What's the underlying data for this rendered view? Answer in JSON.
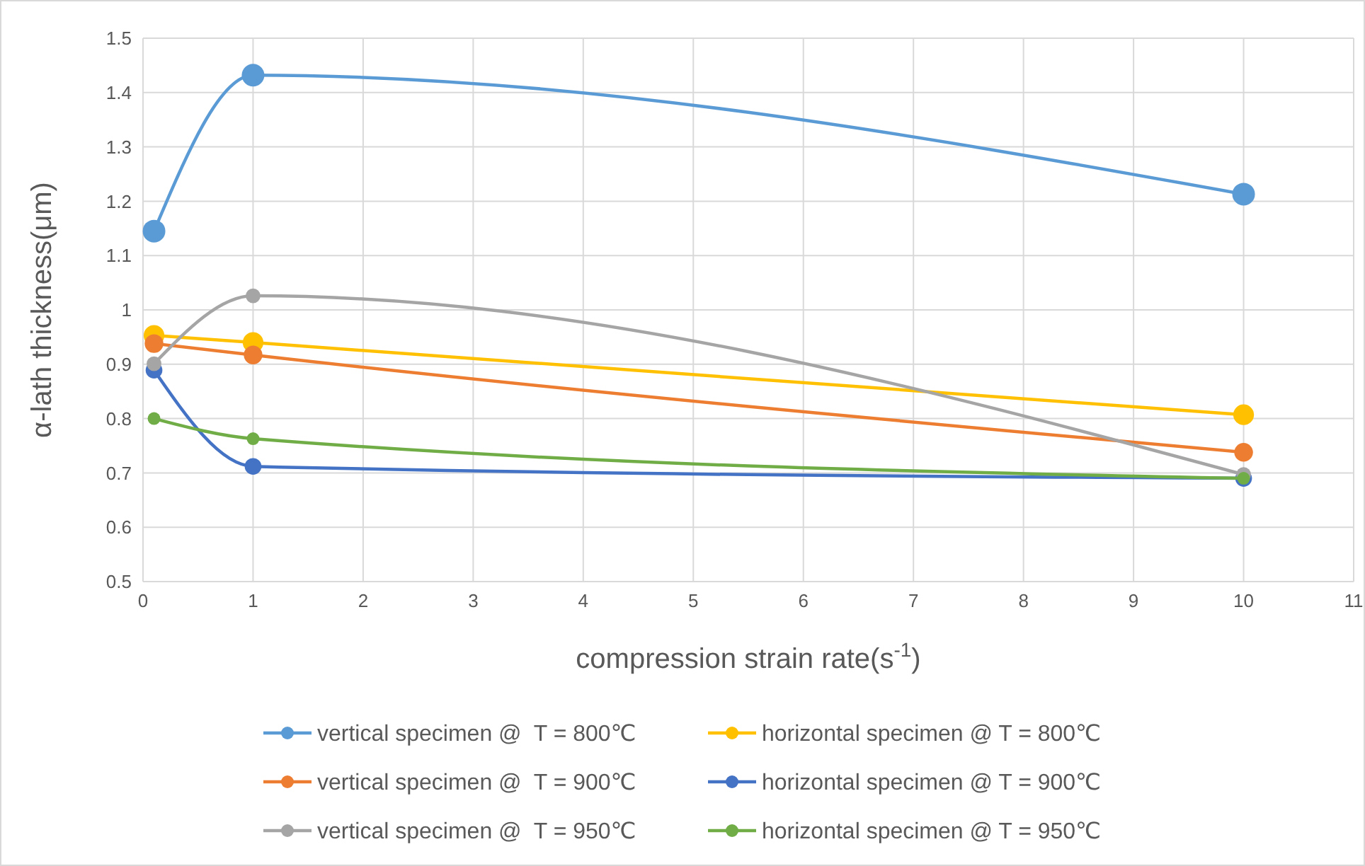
{
  "chart_data": {
    "type": "line",
    "xlabel": "compression strain rate(s$^{-1}$)",
    "ylabel": "α-lath thickness(μm)",
    "x": [
      0.1,
      1,
      10
    ],
    "series": [
      {
        "name": "vertical specimen @  T = 800℃",
        "color": "#5b9bd5",
        "values": [
          1.145,
          1.432,
          1.213
        ]
      },
      {
        "name": "horizontal specimen @ T = 800℃",
        "color": "#ffc000",
        "values": [
          0.953,
          0.94,
          0.807
        ]
      },
      {
        "name": "vertical specimen @  T = 900℃",
        "color": "#ed7d31",
        "values": [
          0.938,
          0.917,
          0.738
        ]
      },
      {
        "name": "horizontal specimen @ T = 900℃",
        "color": "#4472c4",
        "values": [
          0.889,
          0.712,
          0.69
        ]
      },
      {
        "name": "vertical specimen @  T = 950℃",
        "color": "#a5a5a5",
        "values": [
          0.901,
          1.026,
          0.697
        ]
      },
      {
        "name": "horizontal specimen @ T = 950℃",
        "color": "#70ad47",
        "values": [
          0.8,
          0.763,
          0.69
        ]
      }
    ],
    "xlim": [
      0,
      11
    ],
    "xticks": [
      0,
      1,
      2,
      3,
      4,
      5,
      6,
      7,
      8,
      9,
      10,
      11
    ],
    "ylim": [
      0.5,
      1.5
    ],
    "yticks": [
      0.5,
      0.6,
      0.7,
      0.8,
      0.9,
      1,
      1.1,
      1.2,
      1.3,
      1.4,
      1.5
    ],
    "grid": true,
    "legend": "bottom",
    "marker": "circle",
    "line_style": "solid"
  }
}
